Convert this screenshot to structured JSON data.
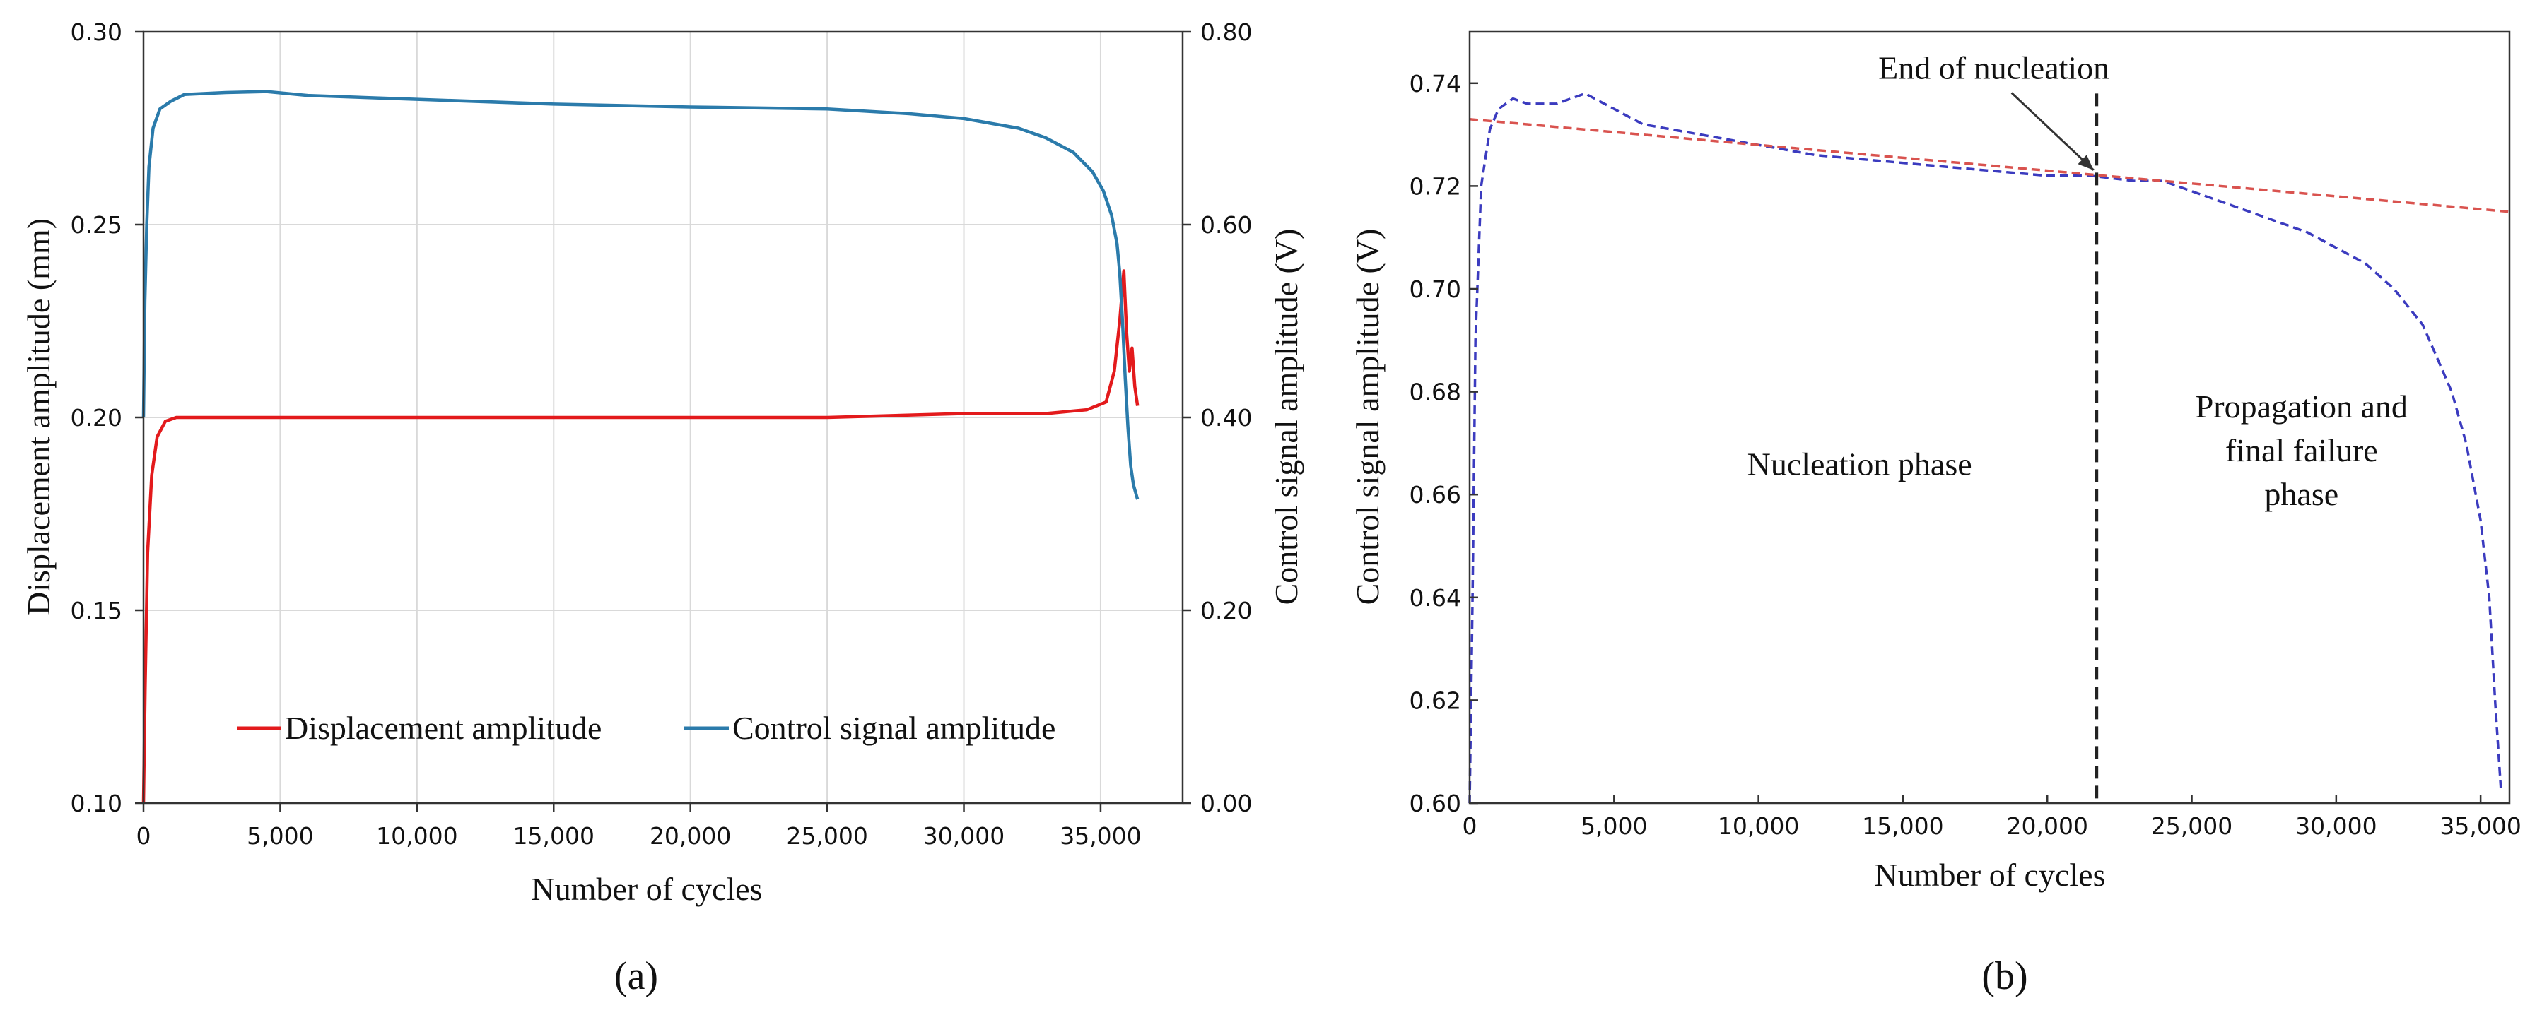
{
  "chart_data": [
    {
      "panel_label": "(a)",
      "type": "line",
      "xlabel": "Number of cycles",
      "ylabel_left": "Displacement amplitude (mm)",
      "ylabel_right": "Control signal amplitude (V)",
      "xlim": [
        0,
        38000
      ],
      "xticks": [
        0,
        5000,
        10000,
        15000,
        20000,
        25000,
        30000,
        35000
      ],
      "xtick_labels": [
        "0",
        "5,000",
        "10,000",
        "15,000",
        "20,000",
        "25,000",
        "30,000",
        "35,000"
      ],
      "ylim_left": [
        0.1,
        0.3
      ],
      "yticks_left": [
        0.1,
        0.15,
        0.2,
        0.25,
        0.3
      ],
      "ytick_labels_left": [
        "0.10",
        "0.15",
        "0.20",
        "0.25",
        "0.30"
      ],
      "ylim_right": [
        0.0,
        0.8
      ],
      "yticks_right": [
        0.0,
        0.2,
        0.4,
        0.6,
        0.8
      ],
      "ytick_labels_right": [
        "0.00",
        "0.20",
        "0.40",
        "0.60",
        "0.80"
      ],
      "grid": true,
      "legend_position": "bottom-center",
      "series": [
        {
          "name": "Displacement amplitude",
          "axis": "left",
          "color": "#e31a1c",
          "x": [
            0,
            60,
            150,
            300,
            500,
            800,
            1200,
            2000,
            5000,
            10000,
            15000,
            20000,
            25000,
            30000,
            33000,
            34500,
            35200,
            35500,
            35700,
            35850,
            35950,
            36050,
            36150,
            36250,
            36350
          ],
          "y": [
            0.1,
            0.13,
            0.165,
            0.185,
            0.195,
            0.199,
            0.2,
            0.2,
            0.2,
            0.2,
            0.2,
            0.2,
            0.2,
            0.201,
            0.201,
            0.202,
            0.204,
            0.212,
            0.225,
            0.238,
            0.222,
            0.212,
            0.218,
            0.208,
            0.203
          ]
        },
        {
          "name": "Control signal amplitude",
          "axis": "right",
          "color": "#2b7bab",
          "x": [
            0,
            50,
            120,
            200,
            350,
            600,
            1000,
            1500,
            3000,
            4500,
            6000,
            10000,
            15000,
            20000,
            25000,
            28000,
            30000,
            32000,
            33000,
            34000,
            34700,
            35100,
            35400,
            35600,
            35700,
            35800,
            35900,
            36000,
            36100,
            36200,
            36350
          ],
          "y": [
            0.4,
            0.52,
            0.6,
            0.66,
            0.7,
            0.72,
            0.728,
            0.735,
            0.737,
            0.738,
            0.734,
            0.73,
            0.725,
            0.722,
            0.72,
            0.715,
            0.71,
            0.7,
            0.69,
            0.675,
            0.655,
            0.635,
            0.61,
            0.58,
            0.55,
            0.5,
            0.44,
            0.39,
            0.35,
            0.33,
            0.315
          ]
        }
      ]
    },
    {
      "panel_label": "(b)",
      "type": "line",
      "xlabel": "Number of cycles",
      "ylabel": "Control signal amplitude (V)",
      "xlim": [
        0,
        36000
      ],
      "xticks": [
        0,
        5000,
        10000,
        15000,
        20000,
        25000,
        30000,
        35000
      ],
      "xtick_labels": [
        "0",
        "5,000",
        "10,000",
        "15,000",
        "20,000",
        "25,000",
        "30,000",
        "35,000"
      ],
      "ylim": [
        0.6,
        0.75
      ],
      "yticks": [
        0.6,
        0.62,
        0.64,
        0.66,
        0.68,
        0.7,
        0.72,
        0.74
      ],
      "ytick_labels": [
        "0.60",
        "0.62",
        "0.64",
        "0.66",
        "0.68",
        "0.70",
        "0.72",
        "0.74"
      ],
      "grid": false,
      "series": [
        {
          "name": "Control signal amplitude",
          "style": "dashed",
          "color": "#3b3bbf",
          "x": [
            0,
            100,
            200,
            400,
            700,
            1000,
            1500,
            2000,
            3000,
            4000,
            5000,
            6000,
            7000,
            8000,
            10000,
            12000,
            14000,
            16000,
            18000,
            20000,
            21500,
            23000,
            24000,
            25000,
            26000,
            27000,
            28000,
            29000,
            30000,
            31000,
            32000,
            33000,
            34000,
            34500,
            35000,
            35300,
            35500,
            35700
          ],
          "y": [
            0.6,
            0.64,
            0.69,
            0.72,
            0.731,
            0.735,
            0.737,
            0.736,
            0.736,
            0.738,
            0.735,
            0.732,
            0.731,
            0.73,
            0.728,
            0.726,
            0.725,
            0.724,
            0.723,
            0.722,
            0.722,
            0.721,
            0.721,
            0.719,
            0.717,
            0.715,
            0.713,
            0.711,
            0.708,
            0.705,
            0.7,
            0.693,
            0.68,
            0.67,
            0.655,
            0.64,
            0.62,
            0.603
          ]
        },
        {
          "name": "Trend line",
          "style": "dashed",
          "color": "#d9534f",
          "x": [
            0,
            36000
          ],
          "y": [
            0.733,
            0.715
          ]
        }
      ],
      "vline": {
        "x": 21700,
        "label": "End of nucleation",
        "style": "dashed",
        "color": "#222222"
      },
      "annotations": [
        {
          "text": "End of nucleation",
          "x": 21700,
          "y": 0.722
        },
        {
          "lines": [
            "Nucleation phase"
          ],
          "x": 13500,
          "y": 0.666
        },
        {
          "lines": [
            "Propagation and",
            "final failure",
            "phase"
          ],
          "x": 28800,
          "y": 0.675
        }
      ]
    }
  ]
}
